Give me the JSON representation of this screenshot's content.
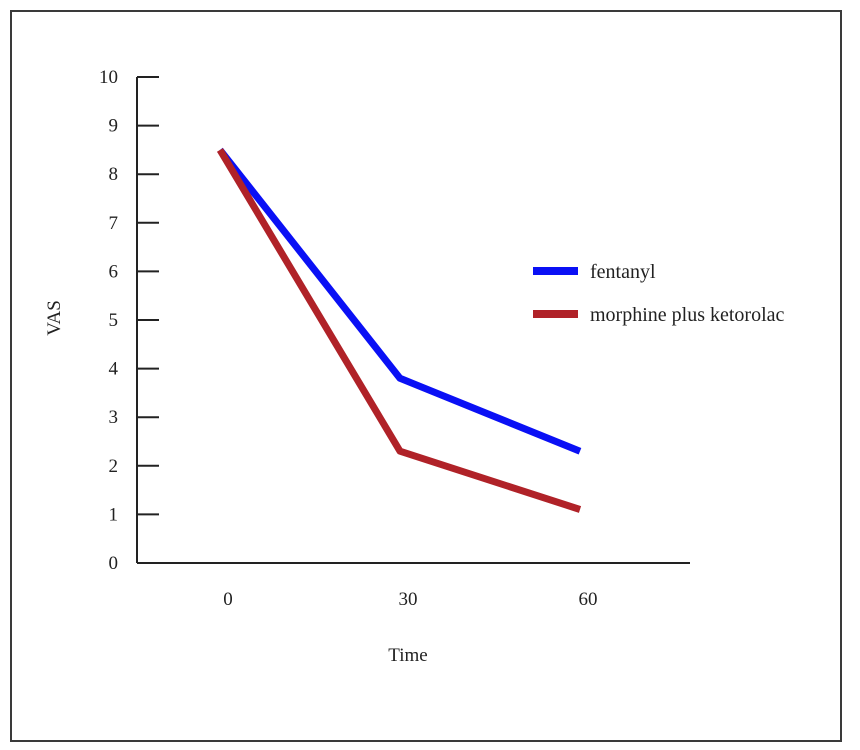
{
  "chart_data": {
    "type": "line",
    "title": "",
    "xlabel": "Time",
    "ylabel": "VAS",
    "categories": [
      "0",
      "30",
      "60"
    ],
    "ylim": [
      0,
      10
    ],
    "yticks": [
      "0",
      "1",
      "2",
      "3",
      "4",
      "5",
      "6",
      "7",
      "8",
      "9",
      "10"
    ],
    "grid": false,
    "legend_position": "right",
    "series": [
      {
        "name": "fentanyl",
        "color": "#0a10f5",
        "values": [
          8.5,
          3.8,
          2.3
        ]
      },
      {
        "name": "morphine plus ketorolac",
        "color": "#b02228",
        "values": [
          8.5,
          2.3,
          1.1
        ]
      }
    ]
  }
}
